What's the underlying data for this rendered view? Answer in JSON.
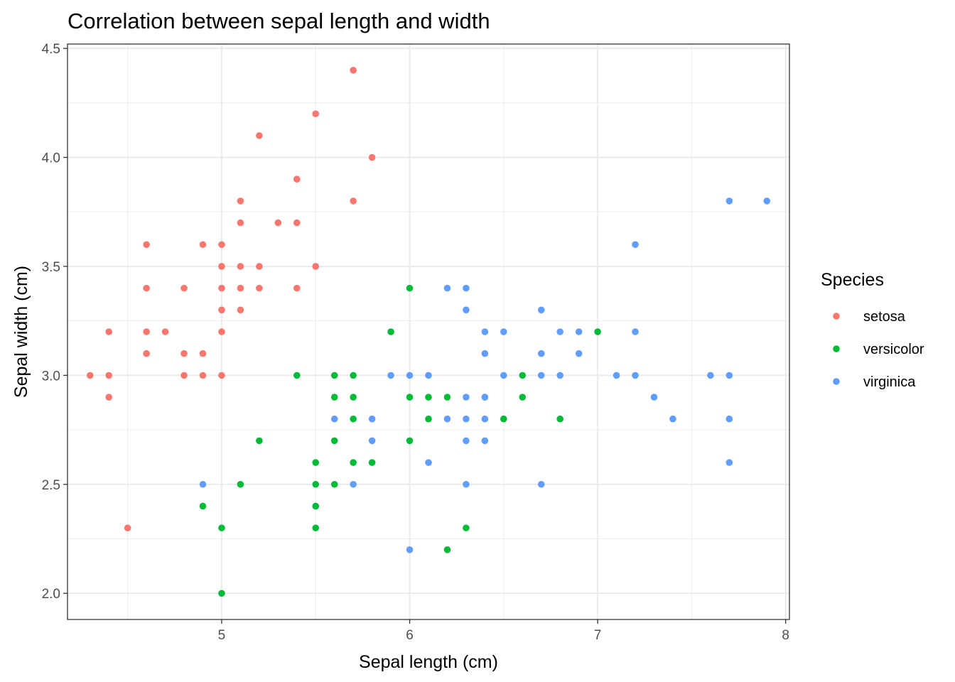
{
  "chart_data": {
    "type": "scatter",
    "title": "Correlation between sepal length and width",
    "xlabel": "Sepal length (cm)",
    "ylabel": "Sepal width (cm)",
    "xlim": [
      4.18,
      8.02
    ],
    "ylim": [
      1.88,
      4.52
    ],
    "x_ticks": [
      5,
      6,
      7,
      8
    ],
    "x_tick_labels": [
      "5",
      "6",
      "7",
      "8"
    ],
    "y_ticks": [
      2.0,
      2.5,
      3.0,
      3.5,
      4.0,
      4.5
    ],
    "y_tick_labels": [
      "2.0",
      "2.5",
      "3.0",
      "3.5",
      "4.0",
      "4.5"
    ],
    "grid": true,
    "legend": {
      "title": "Species",
      "position": "right"
    },
    "series": [
      {
        "name": "setosa",
        "color": "#F8766D",
        "points": [
          [
            5.7,
            4.4
          ],
          [
            5.5,
            4.2
          ],
          [
            5.2,
            4.1
          ],
          [
            5.8,
            4.0
          ],
          [
            5.4,
            3.9
          ],
          [
            5.1,
            3.8
          ],
          [
            5.7,
            3.8
          ],
          [
            5.1,
            3.7
          ],
          [
            5.3,
            3.7
          ],
          [
            5.4,
            3.7
          ],
          [
            4.6,
            3.6
          ],
          [
            4.9,
            3.6
          ],
          [
            5.0,
            3.6
          ],
          [
            5.0,
            3.5
          ],
          [
            5.1,
            3.5
          ],
          [
            5.2,
            3.5
          ],
          [
            5.5,
            3.5
          ],
          [
            4.6,
            3.4
          ],
          [
            4.8,
            3.4
          ],
          [
            5.0,
            3.4
          ],
          [
            5.1,
            3.4
          ],
          [
            5.2,
            3.4
          ],
          [
            5.4,
            3.4
          ],
          [
            5.0,
            3.3
          ],
          [
            5.1,
            3.3
          ],
          [
            4.4,
            3.2
          ],
          [
            4.6,
            3.2
          ],
          [
            4.7,
            3.2
          ],
          [
            5.0,
            3.2
          ],
          [
            4.6,
            3.1
          ],
          [
            4.8,
            3.1
          ],
          [
            4.9,
            3.1
          ],
          [
            4.3,
            3.0
          ],
          [
            4.4,
            3.0
          ],
          [
            4.8,
            3.0
          ],
          [
            4.9,
            3.0
          ],
          [
            5.0,
            3.0
          ],
          [
            4.4,
            2.9
          ],
          [
            4.5,
            2.3
          ]
        ]
      },
      {
        "name": "versicolor",
        "color": "#00BA38",
        "points": [
          [
            6.0,
            3.4
          ],
          [
            5.9,
            3.2
          ],
          [
            7.0,
            3.2
          ],
          [
            5.4,
            3.0
          ],
          [
            5.6,
            3.0
          ],
          [
            5.7,
            3.0
          ],
          [
            6.6,
            3.0
          ],
          [
            5.6,
            2.9
          ],
          [
            5.7,
            2.9
          ],
          [
            6.0,
            2.9
          ],
          [
            6.1,
            2.9
          ],
          [
            6.2,
            2.9
          ],
          [
            6.4,
            2.9
          ],
          [
            6.6,
            2.9
          ],
          [
            5.7,
            2.8
          ],
          [
            6.1,
            2.8
          ],
          [
            6.5,
            2.8
          ],
          [
            6.8,
            2.8
          ],
          [
            5.2,
            2.7
          ],
          [
            5.6,
            2.7
          ],
          [
            6.0,
            2.7
          ],
          [
            5.7,
            2.6
          ],
          [
            5.8,
            2.6
          ],
          [
            5.5,
            2.6
          ],
          [
            5.1,
            2.5
          ],
          [
            5.5,
            2.5
          ],
          [
            5.6,
            2.5
          ],
          [
            4.9,
            2.4
          ],
          [
            5.5,
            2.4
          ],
          [
            5.0,
            2.3
          ],
          [
            5.5,
            2.3
          ],
          [
            6.3,
            2.3
          ],
          [
            6.2,
            2.2
          ],
          [
            5.0,
            2.0
          ]
        ]
      },
      {
        "name": "virginica",
        "color": "#619CFF",
        "points": [
          [
            7.7,
            3.8
          ],
          [
            7.9,
            3.8
          ],
          [
            7.2,
            3.6
          ],
          [
            6.2,
            3.4
          ],
          [
            6.3,
            3.4
          ],
          [
            6.3,
            3.3
          ],
          [
            6.7,
            3.3
          ],
          [
            6.4,
            3.2
          ],
          [
            6.5,
            3.2
          ],
          [
            6.8,
            3.2
          ],
          [
            6.9,
            3.2
          ],
          [
            7.2,
            3.2
          ],
          [
            6.4,
            3.1
          ],
          [
            6.7,
            3.1
          ],
          [
            6.9,
            3.1
          ],
          [
            5.9,
            3.0
          ],
          [
            6.0,
            3.0
          ],
          [
            6.1,
            3.0
          ],
          [
            6.5,
            3.0
          ],
          [
            6.7,
            3.0
          ],
          [
            6.8,
            3.0
          ],
          [
            7.1,
            3.0
          ],
          [
            7.2,
            3.0
          ],
          [
            7.6,
            3.0
          ],
          [
            7.7,
            3.0
          ],
          [
            6.3,
            2.9
          ],
          [
            6.4,
            2.9
          ],
          [
            7.3,
            2.9
          ],
          [
            5.6,
            2.8
          ],
          [
            5.8,
            2.8
          ],
          [
            6.2,
            2.8
          ],
          [
            6.3,
            2.8
          ],
          [
            6.4,
            2.8
          ],
          [
            7.4,
            2.8
          ],
          [
            7.7,
            2.8
          ],
          [
            5.8,
            2.7
          ],
          [
            6.3,
            2.7
          ],
          [
            6.4,
            2.7
          ],
          [
            6.1,
            2.6
          ],
          [
            7.7,
            2.6
          ],
          [
            4.9,
            2.5
          ],
          [
            5.7,
            2.5
          ],
          [
            6.3,
            2.5
          ],
          [
            6.7,
            2.5
          ],
          [
            6.0,
            2.2
          ]
        ]
      }
    ]
  }
}
